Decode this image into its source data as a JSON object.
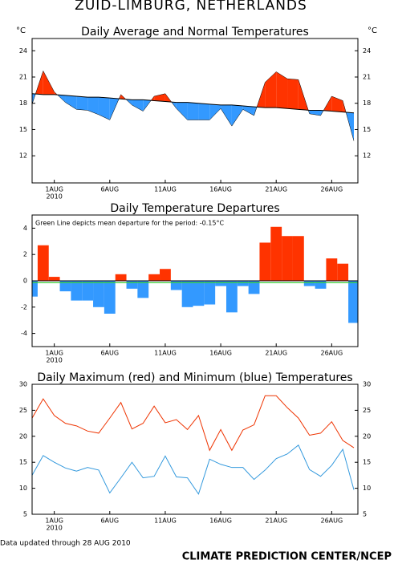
{
  "header": {
    "title": "ZUID-LIMBURG, NETHERLANDS"
  },
  "footer": {
    "updated": "Data updated through 28 AUG 2010",
    "credit": "CLIMATE PREDICTION CENTER/NCEP"
  },
  "chart_data": [
    {
      "type": "departure_area",
      "title": "Daily Average and Normal Temperatures",
      "y_label": "°C",
      "y2_label": "°C",
      "x": [
        "2010-07-30",
        "2010-07-31",
        "2010-08-01",
        "2010-08-02",
        "2010-08-03",
        "2010-08-04",
        "2010-08-05",
        "2010-08-06",
        "2010-08-07",
        "2010-08-08",
        "2010-08-09",
        "2010-08-10",
        "2010-08-11",
        "2010-08-12",
        "2010-08-13",
        "2010-08-14",
        "2010-08-15",
        "2010-08-16",
        "2010-08-17",
        "2010-08-18",
        "2010-08-19",
        "2010-08-20",
        "2010-08-21",
        "2010-08-22",
        "2010-08-23",
        "2010-08-24",
        "2010-08-25",
        "2010-08-26",
        "2010-08-27",
        "2010-08-28"
      ],
      "series": [
        {
          "color": "#000000",
          "values": [
            17.9,
            21.7,
            19.3,
            18.1,
            17.3,
            17.2,
            16.7,
            16.1,
            19.0,
            17.8,
            17.1,
            18.8,
            19.1,
            17.4,
            16.1,
            16.1,
            16.1,
            17.4,
            15.4,
            17.3,
            16.6,
            20.4,
            21.6,
            20.8,
            20.7,
            16.8,
            16.6,
            18.8,
            18.3,
            13.7
          ]
        },
        {
          "color": "#000000",
          "values": [
            19.1,
            19.0,
            19.0,
            18.9,
            18.8,
            18.7,
            18.7,
            18.6,
            18.5,
            18.4,
            18.4,
            18.3,
            18.2,
            18.1,
            18.1,
            18.0,
            17.9,
            17.8,
            17.8,
            17.7,
            17.6,
            17.5,
            17.5,
            17.4,
            17.3,
            17.2,
            17.2,
            17.1,
            17.0,
            16.9
          ]
        }
      ],
      "above_color": "#ff3300",
      "below_color": "#3399ff",
      "xlim": [
        "2010-07-30",
        "2010-08-28"
      ],
      "xticks": [
        {
          "value": "2010-08-01",
          "label": "1AUG",
          "sublabel": "2010"
        },
        {
          "value": "2010-08-06",
          "label": "6AUG"
        },
        {
          "value": "2010-08-11",
          "label": "11AUG"
        },
        {
          "value": "2010-08-16",
          "label": "16AUG"
        },
        {
          "value": "2010-08-21",
          "label": "21AUG"
        },
        {
          "value": "2010-08-26",
          "label": "26AUG"
        }
      ],
      "ylim": [
        8.9,
        25.4
      ],
      "yticks": [
        12,
        15,
        18,
        21,
        24
      ],
      "right_axis_labels": true
    },
    {
      "type": "bar",
      "title": "Daily Temperature Departures",
      "annotation": "Green Line depicts mean departure for the period: -0.15°C",
      "mean_departure": -0.15,
      "mean_color": "#33cc33",
      "x": [
        "2010-07-30",
        "2010-07-31",
        "2010-08-01",
        "2010-08-02",
        "2010-08-03",
        "2010-08-04",
        "2010-08-05",
        "2010-08-06",
        "2010-08-07",
        "2010-08-08",
        "2010-08-09",
        "2010-08-10",
        "2010-08-11",
        "2010-08-12",
        "2010-08-13",
        "2010-08-14",
        "2010-08-15",
        "2010-08-16",
        "2010-08-17",
        "2010-08-18",
        "2010-08-19",
        "2010-08-20",
        "2010-08-21",
        "2010-08-22",
        "2010-08-23",
        "2010-08-24",
        "2010-08-25",
        "2010-08-26",
        "2010-08-27",
        "2010-08-28"
      ],
      "values": [
        -1.2,
        2.7,
        0.3,
        -0.8,
        -1.5,
        -1.5,
        -2.0,
        -2.5,
        0.5,
        -0.6,
        -1.3,
        0.5,
        0.9,
        -0.7,
        -2.0,
        -1.9,
        -1.8,
        -0.4,
        -2.4,
        -0.4,
        -1.0,
        2.9,
        4.1,
        3.4,
        3.4,
        -0.4,
        -0.6,
        1.7,
        1.3,
        -3.2
      ],
      "above_color": "#ff3300",
      "below_color": "#3399ff",
      "xlim": [
        "2010-07-30",
        "2010-08-28"
      ],
      "xticks": [
        {
          "value": "2010-08-01",
          "label": "1AUG",
          "sublabel": "2010"
        },
        {
          "value": "2010-08-06",
          "label": "6AUG"
        },
        {
          "value": "2010-08-11",
          "label": "11AUG"
        },
        {
          "value": "2010-08-16",
          "label": "16AUG"
        },
        {
          "value": "2010-08-21",
          "label": "21AUG"
        },
        {
          "value": "2010-08-26",
          "label": "26AUG"
        }
      ],
      "ylim": [
        -5,
        5
      ],
      "yticks": [
        -4,
        -2,
        0,
        2,
        4
      ],
      "right_axis_labels": false
    },
    {
      "type": "line",
      "title": "Daily Maximum (red) and Minimum (blue) Temperatures",
      "x": [
        "2010-07-30",
        "2010-07-31",
        "2010-08-01",
        "2010-08-02",
        "2010-08-03",
        "2010-08-04",
        "2010-08-05",
        "2010-08-06",
        "2010-08-07",
        "2010-08-08",
        "2010-08-09",
        "2010-08-10",
        "2010-08-11",
        "2010-08-12",
        "2010-08-13",
        "2010-08-14",
        "2010-08-15",
        "2010-08-16",
        "2010-08-17",
        "2010-08-18",
        "2010-08-19",
        "2010-08-20",
        "2010-08-21",
        "2010-08-22",
        "2010-08-23",
        "2010-08-24",
        "2010-08-25",
        "2010-08-26",
        "2010-08-27",
        "2010-08-28"
      ],
      "series": [
        {
          "color": "#ee3300",
          "values": [
            23.5,
            27.2,
            24.0,
            22.5,
            22.0,
            21.0,
            20.6,
            23.5,
            26.5,
            21.4,
            22.5,
            25.8,
            22.6,
            23.2,
            21.3,
            24.0,
            17.3,
            21.3,
            17.3,
            21.2,
            22.2,
            27.8,
            27.8,
            25.5,
            23.5,
            20.2,
            20.6,
            22.8,
            19.2,
            17.8
          ]
        },
        {
          "color": "#3399dd",
          "values": [
            12.5,
            16.3,
            15.0,
            13.9,
            13.3,
            14.0,
            13.5,
            9.1,
            12.0,
            15.0,
            12.0,
            12.3,
            16.2,
            12.2,
            12.0,
            8.9,
            15.6,
            14.6,
            14.0,
            14.0,
            11.7,
            13.5,
            15.7,
            16.6,
            18.3,
            13.6,
            12.3,
            14.4,
            17.5,
            9.7
          ]
        }
      ],
      "xlim": [
        "2010-07-30",
        "2010-08-28"
      ],
      "xticks": [
        {
          "value": "2010-08-01",
          "label": "1AUG",
          "sublabel": "2010"
        },
        {
          "value": "2010-08-06",
          "label": "6AUG"
        },
        {
          "value": "2010-08-11",
          "label": "11AUG"
        },
        {
          "value": "2010-08-16",
          "label": "16AUG"
        },
        {
          "value": "2010-08-21",
          "label": "21AUG"
        },
        {
          "value": "2010-08-26",
          "label": "26AUG"
        }
      ],
      "ylim": [
        5,
        30
      ],
      "yticks": [
        5,
        10,
        15,
        20,
        25,
        30
      ],
      "right_axis_labels": true
    }
  ]
}
